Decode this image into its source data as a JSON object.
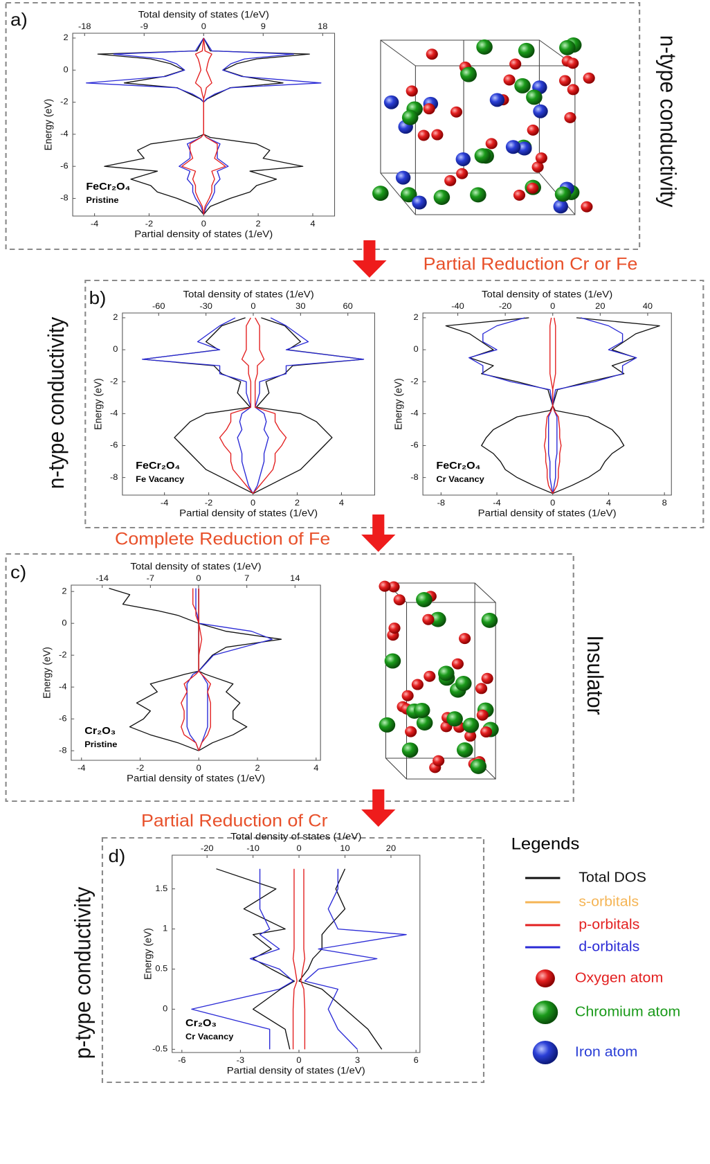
{
  "chart_data": [
    {
      "type": "line",
      "orientation": "horizontal",
      "mirrored": true,
      "x2label": "Total density of states (1/eV)",
      "xlabel": "Partial density of states (1/eV)",
      "ylabel": "Energy (eV)",
      "compound": "FeCr₂O₄",
      "note": "Pristine",
      "xlim": [
        -4.8,
        4.8
      ],
      "xticks": [
        -4,
        -2,
        0,
        2,
        4
      ],
      "x2lim": [
        -19.8,
        19.8
      ],
      "x2ticks": [
        -18,
        -9,
        0,
        9,
        18
      ],
      "ylim": [
        -9.1,
        2.3
      ],
      "yticks": [
        -8,
        -6,
        -4,
        -2,
        0,
        2
      ],
      "y": [
        2,
        1.2,
        1.0,
        0.7,
        0.4,
        0,
        -0.4,
        -0.8,
        -1.1,
        -1.5,
        -1.8,
        -2,
        -4,
        -4.2,
        -4.6,
        -5,
        -5.5,
        -6,
        -6.3,
        -6.8,
        -7.2,
        -7.6,
        -8,
        -8.5,
        -9
      ],
      "series": [
        {
          "axis": "x2",
          "color": "#111111",
          "values": [
            0,
            1,
            16,
            8,
            5,
            3,
            6,
            12,
            4,
            2,
            0.5,
            0,
            0,
            1,
            8,
            10,
            9,
            15,
            7,
            11,
            8,
            7,
            4,
            1,
            0
          ]
        },
        {
          "axis": "x",
          "color": "#2b2bd6",
          "values": [
            0,
            0.3,
            3.3,
            1.5,
            1,
            0.7,
            1.4,
            4.3,
            1,
            0.4,
            0.1,
            0,
            0,
            0.1,
            0.6,
            0.5,
            0.5,
            0.9,
            0.5,
            0.6,
            0.4,
            0.4,
            0.3,
            0.1,
            0
          ]
        },
        {
          "axis": "x",
          "color": "#e32020",
          "values": [
            0,
            0.05,
            0.3,
            0.2,
            0.15,
            0.1,
            0.2,
            0.3,
            0.1,
            0.05,
            0,
            0,
            0,
            0.1,
            0.5,
            0.5,
            0.4,
            0.8,
            0.3,
            0.4,
            0.3,
            0.3,
            0.2,
            0.05,
            0
          ]
        }
      ]
    },
    {
      "type": "line",
      "orientation": "horizontal",
      "mirrored": true,
      "x2label": "Total density of states (1/eV)",
      "xlabel": "Partial density of states (1/eV)",
      "ylabel": "Energy (eV)",
      "compound": "FeCr₂O₄",
      "note": "Fe Vacancy",
      "xlim": [
        -5.9,
        5.5
      ],
      "xticks": [
        -4,
        -2,
        0,
        2,
        4
      ],
      "x2lim": [
        -83,
        77
      ],
      "x2ticks": [
        -60,
        -30,
        0,
        30,
        60
      ],
      "ylim": [
        -9.1,
        2.3
      ],
      "yticks": [
        -8,
        -6,
        -4,
        -2,
        0,
        2
      ],
      "y": [
        2,
        1.5,
        1,
        0.5,
        0,
        -0.6,
        -1,
        -1.5,
        -2,
        -2.7,
        -3.6,
        -4,
        -4.5,
        -5,
        -5.5,
        -6,
        -6.5,
        -7,
        -7.5,
        -8,
        -8.5,
        -9
      ],
      "series": [
        {
          "axis": "x2",
          "color": "#111111",
          "values": [
            5,
            20,
            25,
            30,
            22,
            70,
            25,
            20,
            8,
            10,
            2,
            30,
            40,
            45,
            50,
            45,
            40,
            35,
            30,
            20,
            10,
            0
          ]
        },
        {
          "axis": "x",
          "color": "#2b2bd6",
          "values": [
            0.8,
            1.5,
            2,
            2.5,
            1.5,
            5,
            1.5,
            1.5,
            0.3,
            0.3,
            0.1,
            0.5,
            0.6,
            0.5,
            0.7,
            0.6,
            0.5,
            0.5,
            0.4,
            0.3,
            0.2,
            0
          ]
        },
        {
          "axis": "x",
          "color": "#e32020",
          "values": [
            0.1,
            0.3,
            0.3,
            0.3,
            0.3,
            0.5,
            0.2,
            0.2,
            0.1,
            0.1,
            0.1,
            1,
            1,
            1.2,
            1.5,
            1.3,
            1,
            1,
            0.9,
            0.6,
            0.3,
            0
          ]
        }
      ]
    },
    {
      "type": "line",
      "orientation": "horizontal",
      "mirrored": true,
      "x2label": "Total density of states (1/eV)",
      "xlabel": "Partial density of states (1/eV)",
      "ylabel": "Energy (eV)",
      "compound": "FeCr₂O₄",
      "note": "Cr Vacancy",
      "xlim": [
        -9.3,
        8.5
      ],
      "xticks": [
        -8,
        -4,
        0,
        4,
        8
      ],
      "x2lim": [
        -54.7,
        50
      ],
      "x2ticks": [
        -40,
        -20,
        0,
        20,
        40
      ],
      "ylim": [
        -9.1,
        2.3
      ],
      "yticks": [
        -8,
        -6,
        -4,
        -2,
        0,
        2
      ],
      "y": [
        2,
        1.5,
        1,
        0.5,
        0,
        -0.5,
        -1,
        -1.5,
        -2,
        -2.5,
        -3.5,
        -3.8,
        -4.2,
        -5,
        -5.5,
        -6,
        -6.5,
        -7,
        -7.5,
        -8,
        -8.5,
        -9
      ],
      "series": [
        {
          "axis": "x2",
          "color": "#111111",
          "values": [
            10,
            45,
            35,
            30,
            25,
            35,
            25,
            30,
            15,
            2,
            0,
            1,
            15,
            25,
            28,
            30,
            25,
            22,
            20,
            15,
            8,
            0
          ]
        },
        {
          "axis": "x",
          "color": "#2b2bd6",
          "values": [
            2,
            4,
            5,
            5,
            4,
            6,
            5,
            5,
            3,
            0.2,
            0,
            0.1,
            0.3,
            0.3,
            0.3,
            0.3,
            0.3,
            0.2,
            0.2,
            0.2,
            0.1,
            0
          ]
        },
        {
          "axis": "x",
          "color": "#e32020",
          "values": [
            0.1,
            0.2,
            0.2,
            0.2,
            0.2,
            0.2,
            0.2,
            0.2,
            0.1,
            0,
            0,
            0.1,
            0.4,
            0.5,
            0.5,
            0.6,
            0.5,
            0.5,
            0.4,
            0.4,
            0.3,
            0
          ]
        }
      ]
    },
    {
      "type": "line",
      "orientation": "horizontal",
      "mirrored": false,
      "x2label": "Total density of states (1/eV)",
      "xlabel": "Partial density of states (1/eV)",
      "ylabel": "Energy (eV)",
      "compound": "Cr₂O₃",
      "note": "Pristine",
      "xlim": [
        -4.35,
        4.15
      ],
      "xticks": [
        -4,
        -2,
        0,
        2,
        4
      ],
      "x2lim": [
        -18.5,
        17.7
      ],
      "x2ticks": [
        -14,
        -7,
        0,
        7,
        14
      ],
      "ylim": [
        -8.6,
        2.4
      ],
      "yticks": [
        -8,
        -6,
        -4,
        -2,
        0,
        2
      ],
      "y": [
        2.2,
        1.8,
        1.2,
        0.8,
        0.5,
        0,
        -0.5,
        -1,
        -1.5,
        -2,
        -3,
        -3.2,
        -3.8,
        -4.3,
        -5,
        -5.5,
        -6,
        -6.5,
        -7,
        -7.5,
        -8
      ],
      "series": [
        {
          "axis": "x2",
          "color": "#111111",
          "values": [
            0,
            0,
            0,
            0,
            0,
            0,
            4,
            12,
            4,
            2,
            0,
            1,
            5,
            4,
            6,
            5,
            5,
            7,
            5,
            2,
            0
          ],
          "values_down": [
            13,
            10,
            11,
            6,
            3,
            0,
            0,
            0,
            0,
            0,
            0,
            2,
            7,
            6,
            9,
            7,
            8,
            10,
            7,
            3,
            0
          ]
        },
        {
          "axis": "x",
          "color": "#2b2bd6",
          "values": [
            0,
            0,
            0,
            0,
            0,
            0,
            1.8,
            2.5,
            1.5,
            0.5,
            0,
            0.1,
            0.3,
            0.3,
            0.3,
            0.3,
            0.3,
            0.3,
            0.2,
            0.1,
            0
          ],
          "values_down": [
            0.1,
            0.1,
            0.1,
            0.1,
            0.05,
            0,
            0,
            0,
            0,
            0,
            0,
            0.2,
            0.4,
            0.4,
            0.4,
            0.4,
            0.4,
            0.4,
            0.3,
            0.1,
            0
          ]
        },
        {
          "axis": "x",
          "color": "#e32020",
          "values": [
            0,
            0,
            0,
            0,
            0,
            0,
            0.05,
            0.1,
            0.05,
            0,
            0,
            0.1,
            0.4,
            0.3,
            0.4,
            0.4,
            0.4,
            0.4,
            0.3,
            0.1,
            0
          ],
          "values_down": [
            0.2,
            0.2,
            0.2,
            0.1,
            0.1,
            0,
            0,
            0,
            0,
            0,
            0,
            0.1,
            0.5,
            0.4,
            0.6,
            0.5,
            0.5,
            0.6,
            0.5,
            0.1,
            0
          ]
        }
      ]
    },
    {
      "type": "line",
      "orientation": "horizontal",
      "mirrored": false,
      "x2label": "Total density of states (1/eV)",
      "xlabel": "Partial density of states (1/eV)",
      "ylabel": "Energy (eV)",
      "compound": "Cr₂O₃",
      "note": "Cr Vacancy",
      "xlim": [
        -6.5,
        6.2
      ],
      "xticks": [
        -6,
        -3,
        0,
        3,
        6
      ],
      "x2lim": [
        -27.6,
        26.3
      ],
      "x2ticks": [
        -20,
        -10,
        0,
        10,
        20
      ],
      "ylim": [
        -0.54,
        1.92
      ],
      "yticks": [
        -0.5,
        0,
        0.5,
        1,
        1.5
      ],
      "y": [
        1.75,
        1.5,
        1.25,
        1,
        0.93,
        0.75,
        0.63,
        0.5,
        0.35,
        0.25,
        0,
        -0.25,
        -0.5
      ],
      "series": [
        {
          "axis": "x2",
          "color": "#111111",
          "values": [
            10,
            8,
            10,
            6,
            5,
            5,
            3,
            2,
            0,
            5,
            10,
            15,
            18
          ],
          "values_down": [
            18,
            5,
            12,
            3,
            10,
            6,
            10,
            6,
            1,
            4,
            10,
            3,
            2
          ]
        },
        {
          "axis": "x",
          "color": "#2b2bd6",
          "values": [
            2,
            2,
            1.5,
            2,
            5.5,
            1,
            4,
            1,
            0.3,
            2,
            1.5,
            2,
            3
          ],
          "values_down": [
            2,
            2,
            2,
            1.5,
            2,
            1,
            2.5,
            1,
            0.3,
            1,
            5.5,
            1.5,
            1.5
          ]
        },
        {
          "axis": "x",
          "color": "#e32020",
          "values": [
            0.25,
            0.25,
            0.25,
            0.25,
            0.25,
            0.25,
            0.3,
            0.2,
            0.1,
            0.25,
            0.3,
            0.3,
            0.3
          ],
          "values_down": [
            0.25,
            0.25,
            0.25,
            0.25,
            0.25,
            0.25,
            0.3,
            0.2,
            0.1,
            0.25,
            0.3,
            0.3,
            0.3
          ]
        }
      ]
    }
  ],
  "panel_labels": [
    "a)",
    "b)",
    "c)",
    "d)"
  ],
  "side_labels": [
    "n-type conductivity",
    "n-type conductivity",
    "Insulator",
    "p-type conductivity"
  ],
  "annotations": [
    "Partial Reduction Cr or Fe",
    "Complete Reduction of Fe",
    "Partial Reduction of Cr"
  ],
  "legend": {
    "title": "Legends",
    "items": [
      {
        "label": "Total DOS",
        "color": "#111111",
        "kind": "line"
      },
      {
        "label": "s-orbitals",
        "color": "#f5b556",
        "kind": "line"
      },
      {
        "label": "p-orbitals",
        "color": "#e32020",
        "kind": "line"
      },
      {
        "label": "d-orbitals",
        "color": "#2b2bd6",
        "kind": "line"
      },
      {
        "label": "Oxygen atom",
        "color": "#e32020",
        "kind": "atom"
      },
      {
        "label": "Chromium atom",
        "color": "#1a9a1a",
        "kind": "atom"
      },
      {
        "label": "Iron atom",
        "color": "#2b3fd6",
        "kind": "atom"
      }
    ]
  }
}
